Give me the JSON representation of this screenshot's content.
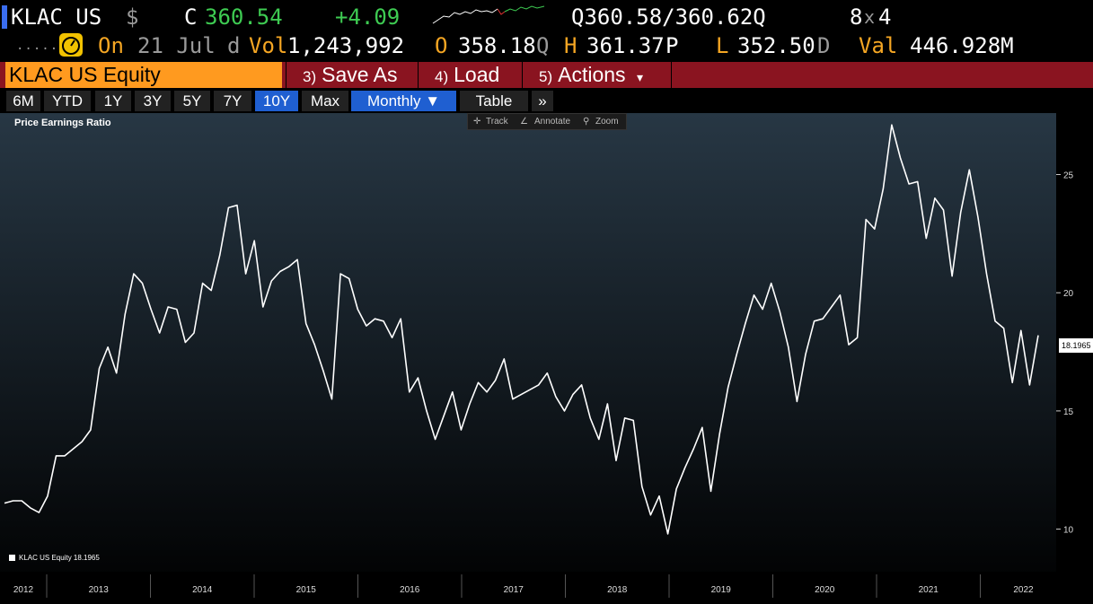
{
  "ticker": {
    "symbol": "KLAC US",
    "currency": "$",
    "close_label": "C",
    "price": "360.54",
    "change": "+4.09",
    "quote": "Q360.58/360.62Q",
    "size": "8",
    "size_x": "x",
    "size2": "4"
  },
  "info": {
    "dots": ".....",
    "on_label": "On",
    "date": "21 Jul",
    "d_label": "d",
    "vol_label": "Vol",
    "vol": "1,243,992",
    "open_label": "O",
    "open": "358.18",
    "open_suffix": "Q",
    "high_label": "H",
    "high": "361.37",
    "high_suffix": "P",
    "low_label": "L",
    "low": "352.50",
    "low_suffix": "D",
    "val_label": "Val",
    "val": "446.928M"
  },
  "functions": {
    "security": "KLAC US Equity",
    "save_num": "3)",
    "save": "Save As",
    "load_num": "4)",
    "load": "Load",
    "actions_num": "5)",
    "actions": "Actions",
    "actions_arrow": "▾"
  },
  "ranges": [
    "6M",
    "YTD",
    "1Y",
    "3Y",
    "5Y",
    "7Y",
    "10Y",
    "Max"
  ],
  "active_range": "10Y",
  "period": "Monthly ▼",
  "table_label": "Table",
  "more_label": "»",
  "tools": {
    "track": "Track",
    "annotate": "Annotate",
    "zoom": "Zoom"
  },
  "colors": {
    "up": "#3ecb52",
    "security_bg": "#ff9a1f",
    "function_bar": "#8a1420",
    "active_range": "#1f5fd1"
  },
  "chart_data": {
    "type": "line",
    "title": "Price Earnings Ratio",
    "legend": "KLAC US Equity  18.1965",
    "last_value_label": "18.1965",
    "y_ticks": [
      10,
      15,
      20,
      25
    ],
    "ylim": [
      8.2,
      27.6
    ],
    "x_labels": [
      "2012",
      "2013",
      "2014",
      "2015",
      "2016",
      "2017",
      "2018",
      "2019",
      "2020",
      "2021",
      "2022"
    ],
    "series": [
      {
        "values": [
          11.1,
          11.2,
          11.2,
          10.9,
          10.7,
          11.4,
          13.1,
          13.1,
          13.4,
          13.7,
          14.2,
          16.8,
          17.7,
          16.6,
          19.1,
          20.8,
          20.4,
          19.3,
          18.3,
          19.4,
          19.3,
          17.9,
          18.3,
          20.4,
          20.1,
          21.6,
          23.6,
          23.7,
          20.8,
          22.2,
          19.4,
          20.5,
          20.9,
          21.1,
          21.4,
          18.7,
          17.8,
          16.7,
          15.5,
          20.8,
          20.6,
          19.3,
          18.6,
          18.9,
          18.8,
          18.1,
          18.9,
          15.8,
          16.4,
          15.0,
          13.8,
          14.8,
          15.8,
          14.2,
          15.3,
          16.2,
          15.8,
          16.3,
          17.2,
          15.5,
          15.7,
          15.9,
          16.1,
          16.6,
          15.6,
          15.0,
          15.7,
          16.1,
          14.7,
          13.8,
          15.3,
          12.9,
          14.7,
          14.6,
          11.8,
          10.6,
          11.4,
          9.8,
          11.7,
          12.6,
          13.4,
          14.3,
          11.6,
          14.0,
          16.0,
          17.4,
          18.7,
          19.9,
          19.3,
          20.4,
          19.2,
          17.7,
          15.4,
          17.4,
          18.8,
          18.9,
          19.4,
          19.9,
          17.8,
          18.1,
          23.1,
          22.7,
          24.4,
          27.1,
          25.7,
          24.6,
          24.7,
          22.3,
          24.0,
          23.5,
          20.7,
          23.4,
          25.2,
          23.2,
          20.8,
          18.8,
          18.5,
          16.2,
          18.4,
          16.1,
          18.2
        ]
      }
    ]
  }
}
